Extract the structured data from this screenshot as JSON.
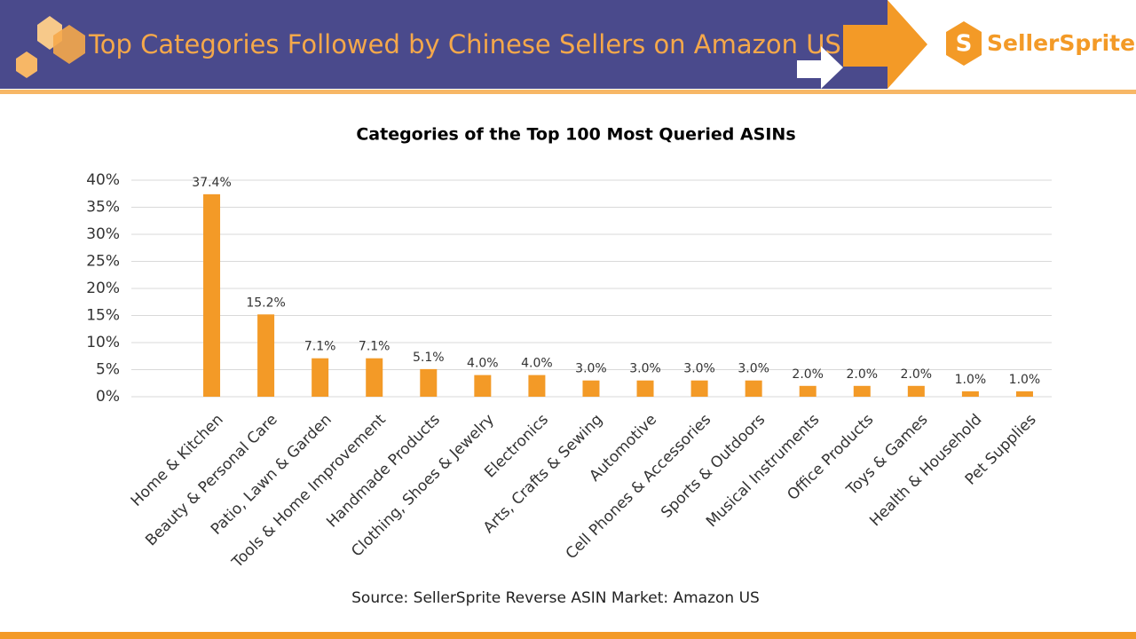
{
  "header": {
    "title": "Top Categories Followed by Chinese Sellers on Amazon US",
    "logo": "SellerSprite"
  },
  "chart_data": {
    "type": "bar",
    "title": "Categories of the Top 100 Most Queried ASINs",
    "categories": [
      "Home & Kitchen",
      "Beauty & Personal Care",
      "Patio, Lawn & Garden",
      "Tools & Home Improvement",
      "Handmade Products",
      "Clothing, Shoes & Jewelry",
      "Electronics",
      "Arts, Crafts & Sewing",
      "Automotive",
      "Cell Phones & Accessories",
      "Sports & Outdoors",
      "Musical Instruments",
      "Office Products",
      "Toys & Games",
      "Health & Household",
      "Pet Supplies"
    ],
    "values": [
      37.4,
      15.2,
      7.1,
      7.1,
      5.1,
      4.0,
      4.0,
      3.0,
      3.0,
      3.0,
      3.0,
      2.0,
      2.0,
      2.0,
      1.0,
      1.0
    ],
    "value_labels": [
      "37.4%",
      "15.2%",
      "7.1%",
      "7.1%",
      "5.1%",
      "4.0%",
      "4.0%",
      "3.0%",
      "3.0%",
      "3.0%",
      "3.0%",
      "2.0%",
      "2.0%",
      "2.0%",
      "1.0%",
      "1.0%"
    ],
    "color": "#f39a27",
    "ylim": [
      0,
      40
    ],
    "yticks": [
      {
        "value": 0,
        "label": "0%"
      },
      {
        "value": 5,
        "label": "5%"
      },
      {
        "value": 10,
        "label": "10%"
      },
      {
        "value": 15,
        "label": "15%"
      },
      {
        "value": 20,
        "label": "20%"
      },
      {
        "value": 25,
        "label": "25%"
      },
      {
        "value": 30,
        "label": "30%"
      },
      {
        "value": 35,
        "label": "35%"
      },
      {
        "value": 40,
        "label": "40%"
      }
    ],
    "grid": true
  },
  "source": "Source: SellerSprite Reverse ASIN  Market: Amazon US"
}
